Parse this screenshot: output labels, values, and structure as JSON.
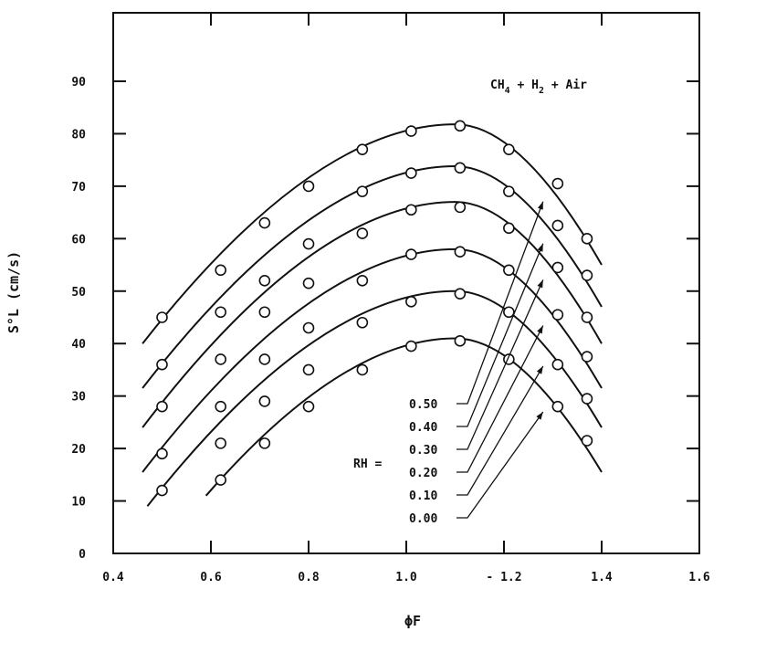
{
  "chart_data": {
    "type": "line",
    "title": "",
    "xlabel": "ϕF",
    "ylabel": "S°L (cm/s)",
    "xlim": [
      0.4,
      1.6
    ],
    "ylim": [
      0,
      100
    ],
    "x_ticks": [
      0.4,
      0.6,
      0.8,
      1.0,
      1.2,
      1.4,
      1.6
    ],
    "x_tick_labels": [
      "0.4",
      "0.6",
      "0.8",
      "1.0",
      "- 1.2",
      "1.4",
      "1.6"
    ],
    "y_ticks": [
      0,
      10,
      20,
      30,
      40,
      50,
      60,
      70,
      80,
      90
    ],
    "y_tick_labels": [
      "0",
      "10",
      "20",
      "30",
      "40",
      "50",
      "60",
      "70",
      "80",
      "90"
    ],
    "annotation": "CH4 + H2 + Air",
    "legend_title": "RH =",
    "series": [
      {
        "name": "0.50",
        "x": [
          0.5,
          0.62,
          0.71,
          0.8,
          0.91,
          1.01,
          1.11,
          1.21,
          1.31,
          1.37
        ],
        "y": [
          45,
          54,
          63,
          70,
          77,
          80.5,
          81.5,
          77,
          70.5,
          60
        ],
        "curve_x": [
          0.46,
          1.1,
          1.4
        ],
        "curve_y": [
          40,
          81.8,
          55
        ]
      },
      {
        "name": "0.40",
        "x": [
          0.5,
          0.62,
          0.71,
          0.8,
          0.91,
          1.01,
          1.11,
          1.21,
          1.31,
          1.37
        ],
        "y": [
          36,
          46,
          52,
          59,
          69,
          72.5,
          73.5,
          69,
          62.5,
          53
        ],
        "curve_x": [
          0.46,
          1.1,
          1.4
        ],
        "curve_y": [
          31.5,
          73.8,
          47
        ]
      },
      {
        "name": "0.30",
        "x": [
          0.5,
          0.62,
          0.71,
          0.8,
          0.91,
          1.01,
          1.11,
          1.21,
          1.31,
          1.37
        ],
        "y": [
          28,
          37,
          46,
          51.5,
          61,
          65.5,
          66,
          62,
          54.5,
          45
        ],
        "curve_x": [
          0.46,
          1.1,
          1.4
        ],
        "curve_y": [
          24,
          67,
          40
        ]
      },
      {
        "name": "0.20",
        "x": [
          0.5,
          0.62,
          0.71,
          0.8,
          0.91,
          1.01,
          1.11,
          1.21,
          1.31,
          1.37
        ],
        "y": [
          19,
          28,
          37,
          43,
          52,
          57,
          57.5,
          54,
          45.5,
          37.5
        ],
        "curve_x": [
          0.46,
          1.1,
          1.4
        ],
        "curve_y": [
          15.5,
          58,
          31.5
        ]
      },
      {
        "name": "0.10",
        "x": [
          0.5,
          0.62,
          0.71,
          0.8,
          0.91,
          1.01,
          1.11,
          1.21,
          1.31,
          1.37
        ],
        "y": [
          12,
          21,
          29,
          35,
          44,
          48,
          49.5,
          46,
          36,
          29.5
        ],
        "curve_x": [
          0.47,
          1.1,
          1.4
        ],
        "curve_y": [
          9,
          50,
          24
        ]
      },
      {
        "name": "0.00",
        "x": [
          0.62,
          0.71,
          0.8,
          0.91,
          1.01,
          1.11,
          1.21,
          1.31,
          1.37
        ],
        "y": [
          14,
          21,
          28,
          35,
          39.5,
          40.5,
          37,
          28,
          21.5
        ],
        "curve_x": [
          0.59,
          1.1,
          1.4
        ],
        "curve_y": [
          11,
          41,
          15.5
        ]
      }
    ]
  }
}
